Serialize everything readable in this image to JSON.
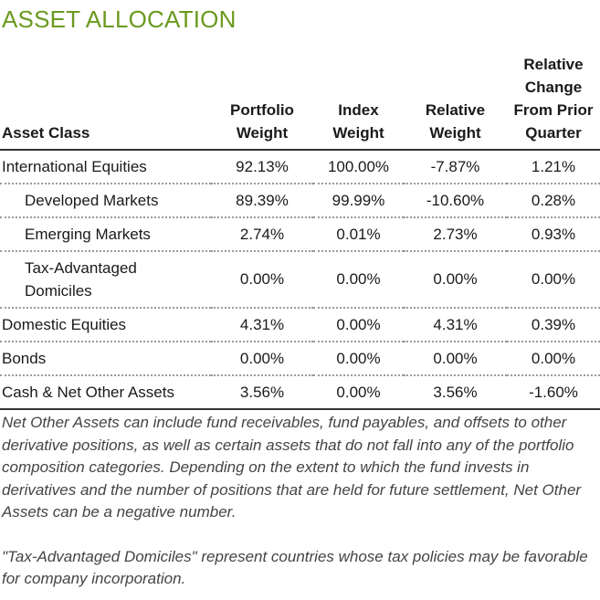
{
  "title": "ASSET ALLOCATION",
  "colors": {
    "title": "#6a9a1f",
    "text": "#1a1a1a",
    "notes": "#444444",
    "rule": "#333333",
    "dotted_rule": "#9a9a9a"
  },
  "table": {
    "headers": {
      "asset_class": "Asset Class",
      "portfolio_weight": [
        "Portfolio",
        "Weight"
      ],
      "index_weight": [
        "Index",
        "Weight"
      ],
      "relative_weight": [
        "Relative",
        "Weight"
      ],
      "relative_change": [
        "Relative",
        "Change",
        "From Prior",
        "Quarter"
      ]
    },
    "rows": [
      {
        "asset_class": "International Equities",
        "portfolio_weight": "92.13%",
        "index_weight": "100.00%",
        "relative_weight": "-7.87%",
        "relative_change": "1.21%"
      },
      {
        "asset_class": "Developed Markets",
        "portfolio_weight": "89.39%",
        "index_weight": "99.99%",
        "relative_weight": "-10.60%",
        "relative_change": "0.28%"
      },
      {
        "asset_class": "Emerging Markets",
        "portfolio_weight": "2.74%",
        "index_weight": "0.01%",
        "relative_weight": "2.73%",
        "relative_change": "0.93%"
      },
      {
        "asset_class_lines": [
          "Tax-Advantaged",
          "Domiciles"
        ],
        "portfolio_weight": "0.00%",
        "index_weight": "0.00%",
        "relative_weight": "0.00%",
        "relative_change": "0.00%"
      },
      {
        "asset_class": "Domestic Equities",
        "portfolio_weight": "4.31%",
        "index_weight": "0.00%",
        "relative_weight": "4.31%",
        "relative_change": "0.39%"
      },
      {
        "asset_class": "Bonds",
        "portfolio_weight": "0.00%",
        "index_weight": "0.00%",
        "relative_weight": "0.00%",
        "relative_change": "0.00%"
      },
      {
        "asset_class": "Cash & Net Other Assets",
        "portfolio_weight": "3.56%",
        "index_weight": "0.00%",
        "relative_weight": "3.56%",
        "relative_change": "-1.60%"
      }
    ]
  },
  "notes": [
    "Net Other Assets can include fund receivables, fund payables, and offsets to other derivative positions, as well as certain assets that do not fall into any of the portfolio composition categories. Depending on the extent to which the fund invests in derivatives and the number of positions that are held for future settlement, Net Other Assets can be a negative number.",
    "\"Tax-Advantaged Domiciles\" represent countries whose tax policies may be favorable for company incorporation."
  ]
}
